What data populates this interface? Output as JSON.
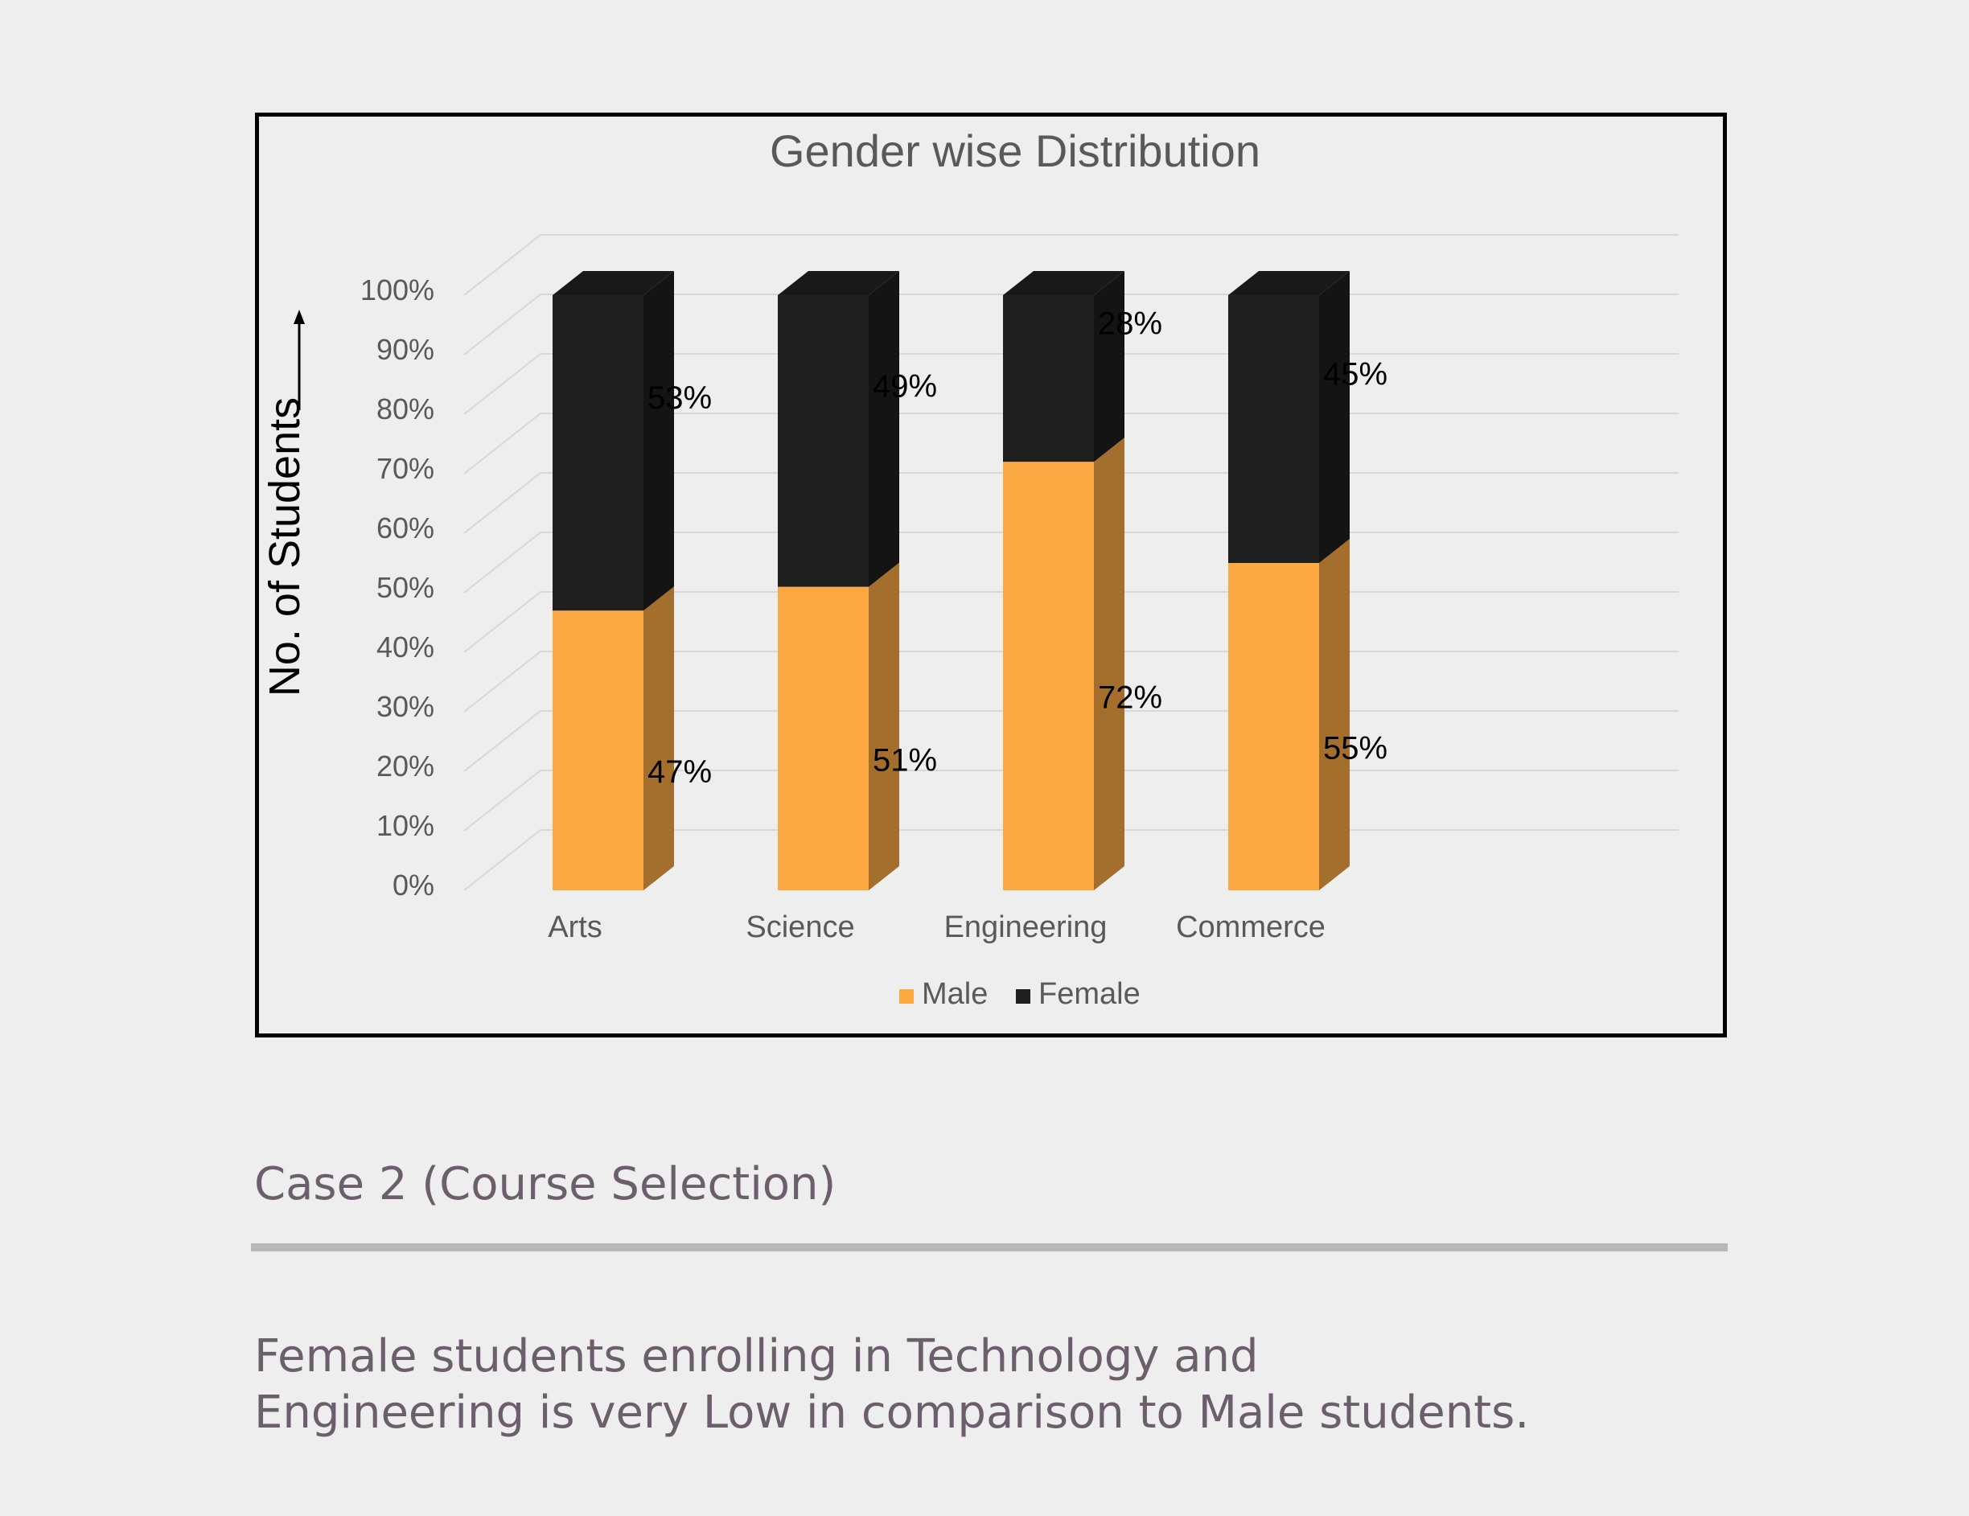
{
  "chart_data": {
    "type": "bar",
    "stacked": true,
    "title": "Gender wise Distribution",
    "xlabel": "",
    "ylabel": "No. of Students",
    "ylim": [
      0,
      100
    ],
    "y_ticks": [
      "0%",
      "10%",
      "20%",
      "30%",
      "40%",
      "50%",
      "60%",
      "70%",
      "80%",
      "90%",
      "100%"
    ],
    "categories": [
      "Arts",
      "Science",
      "Engineering",
      "Commerce"
    ],
    "series": [
      {
        "name": "Male",
        "values": [
          47,
          51,
          72,
          55
        ],
        "labels": [
          "47%",
          "51%",
          "72%",
          "55%"
        ],
        "color": "#fca943"
      },
      {
        "name": "Female",
        "values": [
          53,
          49,
          28,
          45
        ],
        "labels": [
          "53%",
          "49%",
          "28%",
          "45%"
        ],
        "color": "#1f1f1f"
      }
    ],
    "legend": "bottom",
    "grid": true,
    "style": "3d"
  },
  "caption": {
    "heading": "Case 2 (Course Selection)",
    "lines": [
      "Female students enrolling in Technology and",
      "Engineering is very Low in comparison to Male students."
    ]
  },
  "colors": {
    "text": "#6b5f6c",
    "divider": "#b8b8b8",
    "background": "#eeeeee"
  }
}
